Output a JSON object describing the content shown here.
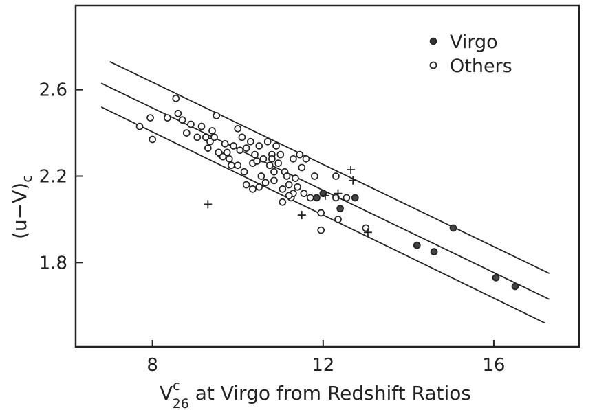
{
  "chart_data": {
    "type": "scatter",
    "xlabel": {
      "main": "V",
      "sup": "c",
      "sub": "26",
      "rest": " at Virgo from Redshift Ratios"
    },
    "ylabel": {
      "main": "(u−V)",
      "sub": "c"
    },
    "xlim": [
      6.2,
      18.0
    ],
    "ylim": [
      1.41,
      2.99
    ],
    "xticks": [
      8,
      12,
      16
    ],
    "xtick_labels": [
      "8",
      "12",
      "16"
    ],
    "yticks": [
      1.8,
      2.2,
      2.6
    ],
    "ytick_labels": [
      "1.8",
      "2.2",
      "2.6"
    ],
    "legend": {
      "placement": "top-right",
      "entries": [
        {
          "label": "Virgo",
          "marker": "filled-circle"
        },
        {
          "label": "Others",
          "marker": "open-circle"
        }
      ]
    },
    "series": [
      {
        "name": "Virgo",
        "marker": "filled-circle",
        "x": [
          15.05,
          14.2,
          14.6,
          16.05,
          16.5,
          12.75,
          12.4,
          11.85,
          12.0,
          10.65
        ],
        "y": [
          1.96,
          1.88,
          1.85,
          1.73,
          1.69,
          2.1,
          2.05,
          2.1,
          2.12,
          2.17
        ]
      },
      {
        "name": "Others",
        "marker": "open-circle",
        "x": [
          7.7,
          8.0,
          7.95,
          8.35,
          8.6,
          8.7,
          8.55,
          8.8,
          8.9,
          9.05,
          9.15,
          9.25,
          9.3,
          9.45,
          9.5,
          9.6,
          9.7,
          9.75,
          9.8,
          9.9,
          10.0,
          10.0,
          10.1,
          10.2,
          10.3,
          10.35,
          10.4,
          10.5,
          10.6,
          10.7,
          10.75,
          10.8,
          10.85,
          10.9,
          11.0,
          11.1,
          11.15,
          11.2,
          11.3,
          11.35,
          11.45,
          11.5,
          11.55,
          11.6,
          9.35,
          9.4,
          9.55,
          9.65,
          9.85,
          10.05,
          10.15,
          10.45,
          10.55,
          10.65,
          10.95,
          11.05,
          11.25,
          11.4,
          10.2,
          10.35,
          10.85,
          11.05,
          11.3,
          11.7,
          11.95,
          11.8,
          12.35,
          12.55,
          12.3,
          12.3,
          11.95,
          13.0,
          10.5,
          10.8,
          11.2
        ],
        "y": [
          2.43,
          2.37,
          2.47,
          2.47,
          2.49,
          2.46,
          2.56,
          2.4,
          2.44,
          2.38,
          2.43,
          2.38,
          2.33,
          2.38,
          2.48,
          2.3,
          2.35,
          2.31,
          2.28,
          2.34,
          2.42,
          2.25,
          2.38,
          2.33,
          2.36,
          2.26,
          2.3,
          2.34,
          2.28,
          2.36,
          2.25,
          2.3,
          2.18,
          2.34,
          2.3,
          2.22,
          2.2,
          2.16,
          2.28,
          2.19,
          2.3,
          2.24,
          2.12,
          2.28,
          2.36,
          2.41,
          2.31,
          2.29,
          2.25,
          2.32,
          2.22,
          2.27,
          2.2,
          2.17,
          2.26,
          2.14,
          2.1,
          2.15,
          2.16,
          2.14,
          2.22,
          2.08,
          2.12,
          2.1,
          2.03,
          2.2,
          2.0,
          2.1,
          2.1,
          2.2,
          1.95,
          1.96,
          2.15,
          2.28,
          2.11
        ]
      },
      {
        "name": "",
        "marker": "plus",
        "x": [
          9.3,
          11.5,
          12.05,
          12.35,
          12.65,
          12.7,
          13.05
        ],
        "y": [
          2.07,
          2.02,
          2.11,
          2.12,
          2.23,
          2.18,
          1.94
        ]
      }
    ],
    "lines": [
      {
        "x": [
          7.0,
          17.3
        ],
        "y": [
          2.73,
          1.75
        ]
      },
      {
        "x": [
          6.8,
          17.3
        ],
        "y": [
          2.63,
          1.63
        ]
      },
      {
        "x": [
          6.8,
          17.2
        ],
        "y": [
          2.52,
          1.52
        ]
      }
    ]
  }
}
